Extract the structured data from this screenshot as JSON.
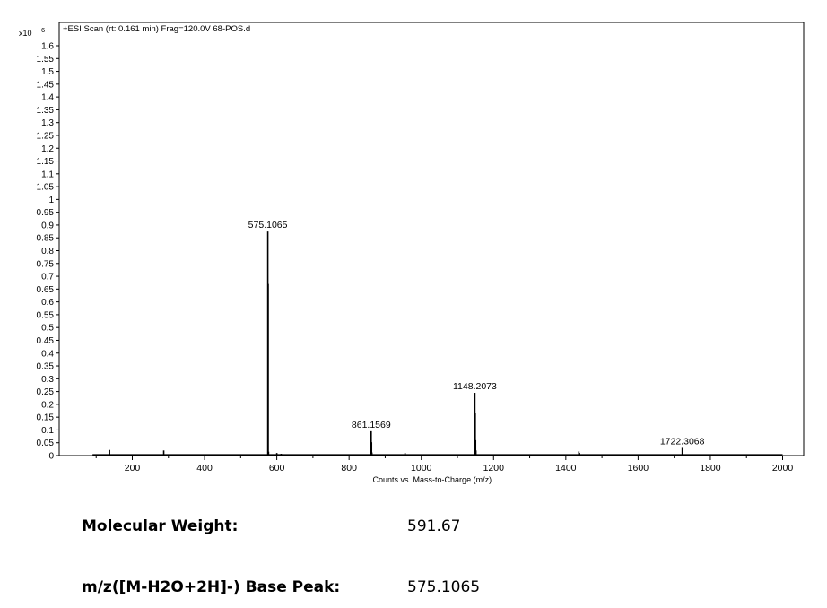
{
  "chart_data": {
    "type": "line",
    "title": "+ESI Scan (rt: 0.161 min) Frag=120.0V 68-POS.d",
    "xlabel": "Counts vs. Mass-to-Charge (m/z)",
    "ylabel": "",
    "y_multiplier_label": "x10",
    "y_multiplier_exponent": "6",
    "xlim": [
      50,
      2000
    ],
    "ylim": [
      0,
      1.65
    ],
    "x_ticks": [
      "200",
      "400",
      "600",
      "800",
      "1000",
      "1200",
      "1400",
      "1600",
      "1800",
      "2000"
    ],
    "y_ticks": [
      "0",
      "0.05",
      "0.1",
      "0.15",
      "0.2",
      "0.25",
      "0.3",
      "0.35",
      "0.4",
      "0.45",
      "0.5",
      "0.55",
      "0.6",
      "0.65",
      "0.7",
      "0.75",
      "0.8",
      "0.85",
      "0.9",
      "0.95",
      "1",
      "1.05",
      "1.1",
      "1.15",
      "1.2",
      "1.25",
      "1.3",
      "1.35",
      "1.4",
      "1.45",
      "1.5",
      "1.55",
      "1.6"
    ],
    "grid": false,
    "series": [
      {
        "peaks": [
          {
            "x": 575.1065,
            "y": 0.875
          },
          {
            "x": 576.1,
            "y": 0.67
          },
          {
            "x": 577.1,
            "y": 0.015
          },
          {
            "x": 861.1569,
            "y": 0.095
          },
          {
            "x": 862.2,
            "y": 0.052
          },
          {
            "x": 863.2,
            "y": 0.012
          },
          {
            "x": 1148.2073,
            "y": 0.245
          },
          {
            "x": 1149.2,
            "y": 0.165
          },
          {
            "x": 1150.2,
            "y": 0.06
          },
          {
            "x": 1151.2,
            "y": 0.02
          },
          {
            "x": 1722.3068,
            "y": 0.03
          },
          {
            "x": 1723.3,
            "y": 0.018
          },
          {
            "x": 137,
            "y": 0.022
          },
          {
            "x": 287,
            "y": 0.02
          },
          {
            "x": 340,
            "y": 0.005
          },
          {
            "x": 600,
            "y": 0.01
          },
          {
            "x": 612,
            "y": 0.007
          },
          {
            "x": 955,
            "y": 0.01
          },
          {
            "x": 1300,
            "y": 0.004
          },
          {
            "x": 1436,
            "y": 0.016
          },
          {
            "x": 1438,
            "y": 0.01
          },
          {
            "x": 1530,
            "y": 0.005
          },
          {
            "x": 1915,
            "y": 0.004
          }
        ]
      }
    ],
    "annotations": [
      {
        "text": "575.1065",
        "x": 575.1065,
        "y": 0.875
      },
      {
        "text": "861.1569",
        "x": 861.1569,
        "y": 0.095
      },
      {
        "text": "1148.2073",
        "x": 1148.2073,
        "y": 0.245
      },
      {
        "text": "1722.3068",
        "x": 1722.3068,
        "y": 0.03
      }
    ]
  },
  "info": {
    "mw_label": "Molecular Weight:",
    "mw_value": "591.67",
    "peak_label": "m/z([M-H2O+2H]-) Base Peak:",
    "peak_value": "575.1065"
  }
}
